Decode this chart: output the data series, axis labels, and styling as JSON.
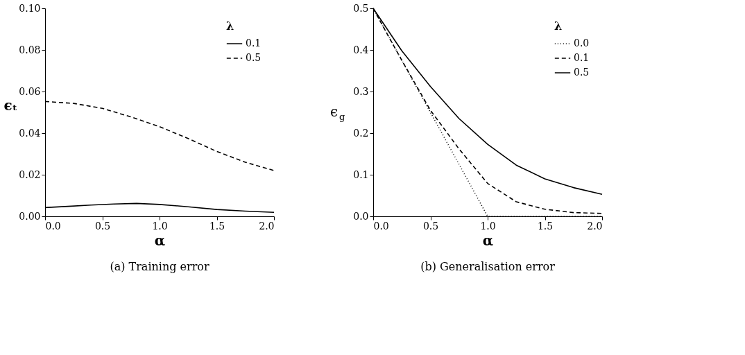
{
  "chart_data": [
    {
      "type": "line",
      "title": "(a) Training error",
      "xlabel": "α",
      "ylabel": "ϵₜ",
      "legend_title": "λ",
      "legend": "top right",
      "xlim": [
        0,
        2
      ],
      "xticks": [
        {
          "value": 0,
          "label": "0.0"
        },
        {
          "value": 0.5,
          "label": "0.5"
        },
        {
          "value": 1,
          "label": "1.0"
        },
        {
          "value": 1.5,
          "label": "1.5"
        },
        {
          "value": 2,
          "label": "2.0"
        }
      ],
      "ylim": [
        0,
        0.1
      ],
      "yticks": [
        {
          "value": 0,
          "label": "0.00"
        },
        {
          "value": 0.02,
          "label": "0.02"
        },
        {
          "value": 0.04,
          "label": "0.04"
        },
        {
          "value": 0.06,
          "label": "0.06"
        },
        {
          "value": 0.08,
          "label": "0.08"
        },
        {
          "value": 0.1,
          "label": "0.10"
        }
      ],
      "series": [
        {
          "name": "0.1",
          "color": "#000000",
          "line_style": "solid",
          "x": [
            0,
            0.2,
            0.4,
            0.6,
            0.8,
            1.0,
            1.25,
            1.5,
            1.75,
            2.0
          ],
          "values": [
            0.0042,
            0.0048,
            0.0054,
            0.0059,
            0.0062,
            0.0057,
            0.0046,
            0.0033,
            0.0025,
            0.0019
          ]
        },
        {
          "name": "0.5",
          "color": "#000000",
          "line_style": "dashed",
          "x": [
            0,
            0.25,
            0.5,
            0.75,
            1.0,
            1.25,
            1.5,
            1.75,
            2.0
          ],
          "values": [
            0.0552,
            0.0543,
            0.0519,
            0.0478,
            0.0431,
            0.0374,
            0.0312,
            0.026,
            0.022
          ]
        }
      ]
    },
    {
      "type": "line",
      "title": "(b) Generalisation error",
      "xlabel": "α",
      "ylabel": "ϵ$_{g}$",
      "legend_title": "λ",
      "legend": "top right",
      "xlim": [
        0,
        2
      ],
      "xticks": [
        {
          "value": 0,
          "label": "0.0"
        },
        {
          "value": 0.5,
          "label": "0.5"
        },
        {
          "value": 1,
          "label": "1.0"
        },
        {
          "value": 1.5,
          "label": "1.5"
        },
        {
          "value": 2,
          "label": "2.0"
        }
      ],
      "ylim": [
        0,
        0.5
      ],
      "yticks": [
        {
          "value": 0,
          "label": "0.0"
        },
        0.1,
        0.2,
        0.3,
        0.4,
        0.5
      ],
      "series": [
        {
          "name": "0.0",
          "color": "#000000",
          "line_style": "dotted",
          "x": [
            0,
            1.0,
            2.0
          ],
          "values": [
            0.5,
            0,
            0
          ]
        },
        {
          "name": "0.1",
          "color": "#000000",
          "line_style": "dashed",
          "x": [
            0,
            0.125,
            0.25,
            0.5,
            0.75,
            1.0,
            1.25,
            1.5,
            1.75,
            2.0
          ],
          "values": [
            0.5,
            0.437,
            0.375,
            0.255,
            0.162,
            0.079,
            0.035,
            0.017,
            0.009,
            0.007
          ]
        },
        {
          "name": "0.5",
          "color": "#000000",
          "line_style": "solid",
          "x": [
            0,
            0.25,
            0.5,
            0.75,
            1.0,
            1.25,
            1.5,
            1.75,
            2.0
          ],
          "values": [
            0.5,
            0.398,
            0.312,
            0.235,
            0.173,
            0.123,
            0.09,
            0.069,
            0.053
          ]
        }
      ]
    }
  ]
}
